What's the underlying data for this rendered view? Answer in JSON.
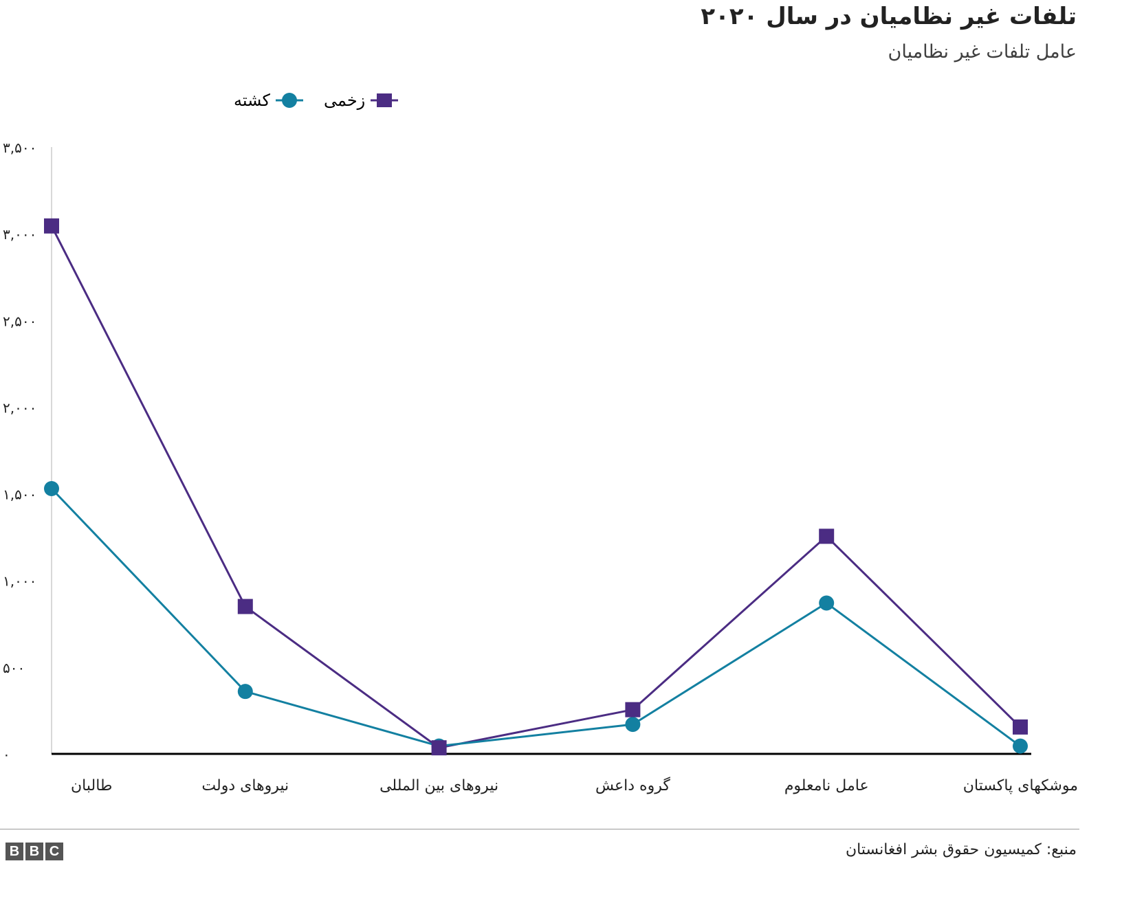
{
  "title": "تلفات غیر نظامیان در سال ۲۰۲۰",
  "subtitle": "عامل تلفات غیر نظامیان",
  "source": "منبع: کمیسیون حقوق بشر افغانستان",
  "logo": "BBC",
  "chart_data": {
    "type": "line",
    "categories": [
      "طالبان",
      "نیروهای دولت",
      "نیروهای بین المللی",
      "گروه داعش",
      "عامل نامعلوم",
      "موشکهای پاکستان"
    ],
    "ylim": [
      0,
      3500
    ],
    "yticks": [
      0,
      500,
      1000,
      1500,
      2000,
      2500,
      3000,
      3500
    ],
    "ytick_labels": [
      "۰",
      "۵۰۰",
      "۱,۰۰۰",
      "۱,۵۰۰",
      "۲,۰۰۰",
      "۲,۵۰۰",
      "۳,۰۰۰",
      "۳,۵۰۰"
    ],
    "grid": false,
    "legend": "top-left",
    "series": [
      {
        "name": "زخمی",
        "color": "#4b2c83",
        "marker": "square",
        "values": [
          3045,
          850,
          35,
          255,
          1255,
          155
        ]
      },
      {
        "name": "کشته",
        "color": "#1380a1",
        "marker": "circle",
        "values": [
          1530,
          360,
          45,
          170,
          870,
          45
        ]
      }
    ]
  }
}
